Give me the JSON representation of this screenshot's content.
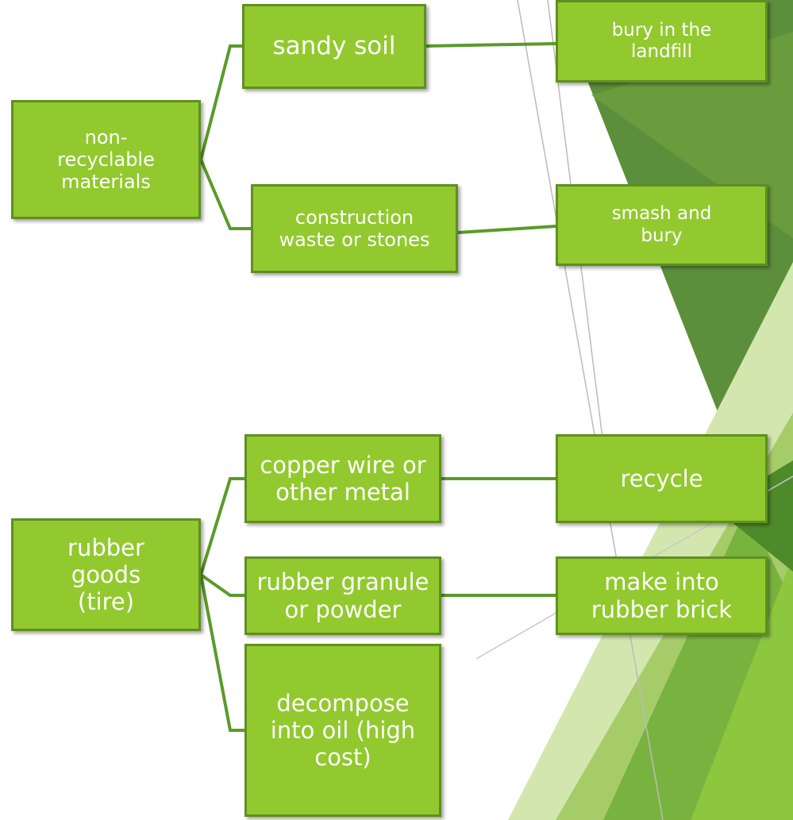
{
  "nodes": [
    {
      "lines": [
        "sandy soil"
      ]
    },
    {
      "lines": [
        "bury in the",
        "landfill"
      ]
    },
    {
      "lines": [
        "non-",
        "recyclable",
        "materials"
      ]
    },
    {
      "lines": [
        "construction",
        "waste or stones"
      ]
    },
    {
      "lines": [
        "smash and",
        "bury"
      ]
    },
    {
      "lines": [
        "copper wire or",
        "other metal"
      ]
    },
    {
      "lines": [
        "recycle"
      ]
    },
    {
      "lines": [
        "rubber",
        "goods",
        "(tire)"
      ]
    },
    {
      "lines": [
        "rubber granule",
        "or powder"
      ]
    },
    {
      "lines": [
        "make into",
        "rubber brick"
      ]
    },
    {
      "lines": [
        "decompose",
        "into oil (high",
        "cost)"
      ]
    }
  ]
}
